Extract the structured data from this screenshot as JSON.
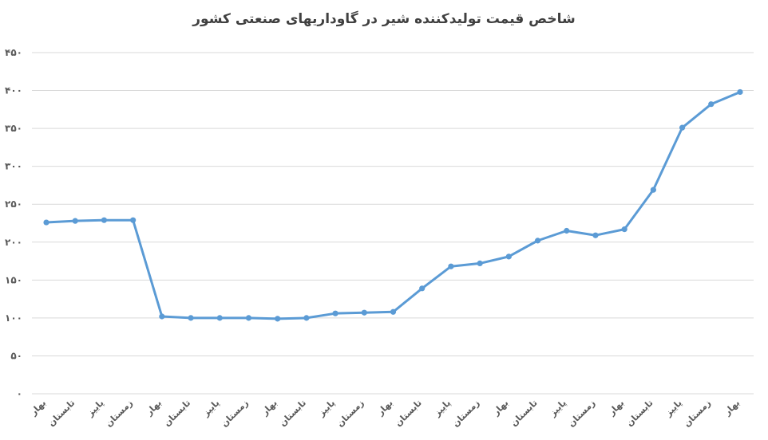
{
  "chart_data": {
    "type": "line",
    "title": "شاخص قیمت تولیدکننده شیر در گاوداریهای صنعتی کشور",
    "xlabel": "",
    "ylabel": "",
    "ylim": [
      0,
      450
    ],
    "yticks": [
      0,
      50,
      100,
      150,
      200,
      250,
      300,
      350,
      400,
      450
    ],
    "ytick_labels": [
      "۰",
      "۵۰",
      "۱۰۰",
      "۱۵۰",
      "۲۰۰",
      "۲۵۰",
      "۳۰۰",
      "۳۵۰",
      "۴۰۰",
      "۴۵۰"
    ],
    "grid": true,
    "legend": "none",
    "categories": [
      "بهار",
      "تابستان",
      "پاییز",
      "زمستان",
      "بهار",
      "تابستان",
      "پاییز",
      "زمستان",
      "بهار",
      "تابستان",
      "پاییز",
      "زمستان",
      "بهار",
      "تابستان",
      "پاییز",
      "زمستان",
      "بهار",
      "تابستان",
      "پاییز",
      "زمستان",
      "بهار",
      "تابستان",
      "پاییز",
      "زمستان",
      "بهار"
    ],
    "series": [
      {
        "values": [
          226,
          228,
          229,
          229,
          102,
          100,
          100,
          100,
          99,
          100,
          106,
          107,
          108,
          139,
          168,
          172,
          181,
          202,
          215,
          209,
          217,
          269,
          351,
          382,
          398
        ]
      }
    ],
    "line_color": "#5B9BD5",
    "grid_color": "#D9D9D9"
  }
}
